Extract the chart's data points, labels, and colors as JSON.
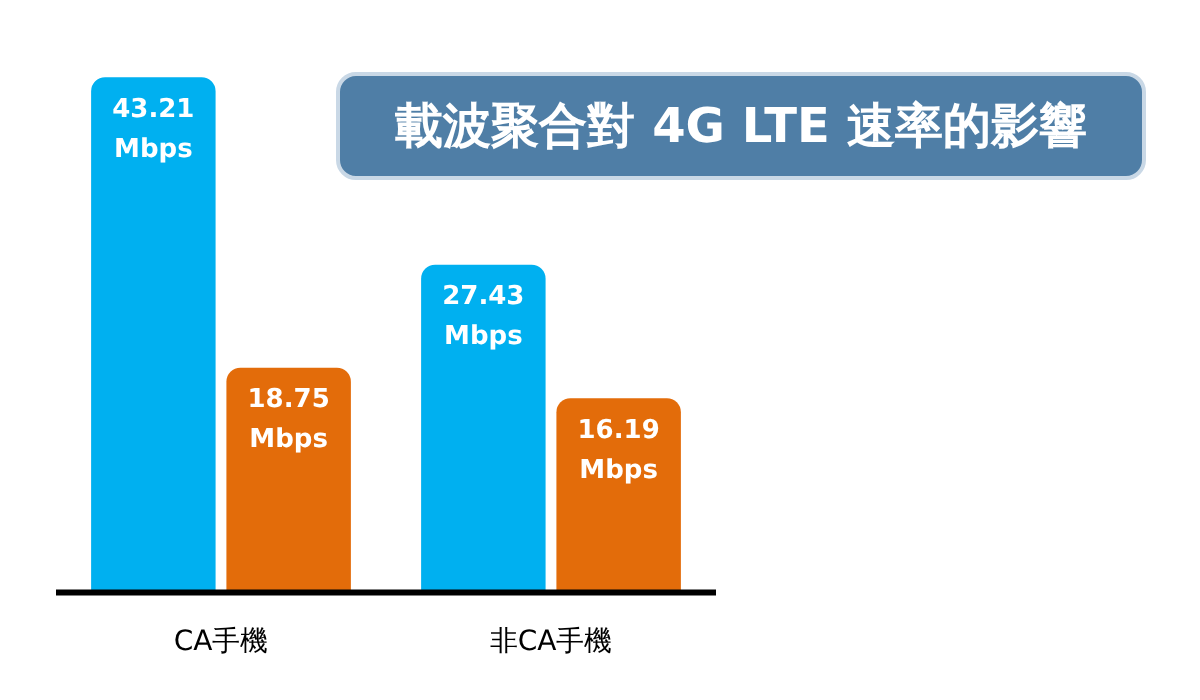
{
  "chart_data": {
    "type": "bar",
    "title": "載波聚合對 4G LTE 速率的影響",
    "categories": [
      "CA手機",
      "非CA手機"
    ],
    "series": [
      {
        "color": "#00b0f0",
        "values": [
          43.21,
          27.43
        ],
        "value_labels": [
          "43.21 Mbps",
          "27.43 Mbps"
        ]
      },
      {
        "color": "#e36c0a",
        "values": [
          18.75,
          16.19
        ],
        "value_labels": [
          "18.75 Mbps",
          "16.19 Mbps"
        ]
      }
    ],
    "grid": false,
    "legend": false
  }
}
